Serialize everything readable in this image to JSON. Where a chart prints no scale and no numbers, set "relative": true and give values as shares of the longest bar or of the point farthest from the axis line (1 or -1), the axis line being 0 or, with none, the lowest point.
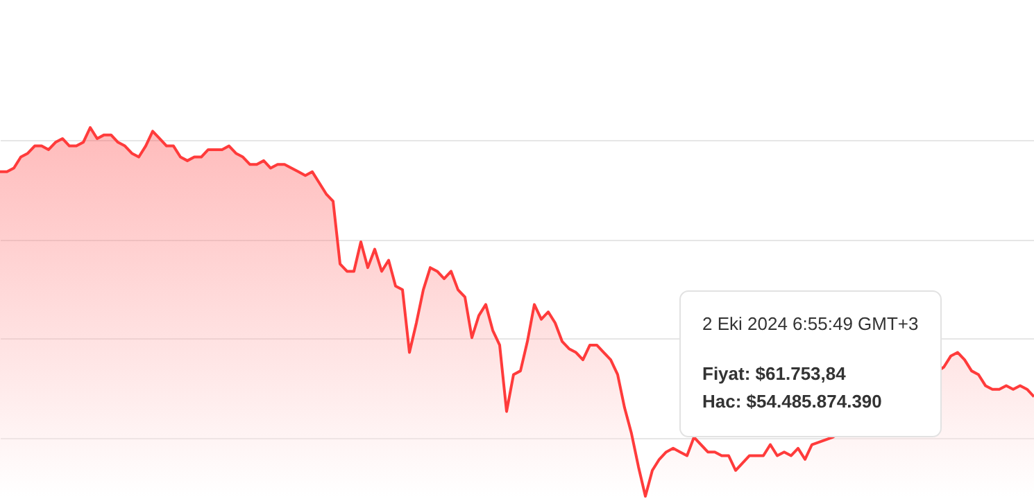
{
  "chart_data": {
    "type": "area",
    "relative": true,
    "grid": "y",
    "tick_labels": false,
    "categories": [
      null,
      null,
      null,
      null,
      null,
      null,
      null,
      null,
      null,
      null,
      null,
      null,
      null,
      null,
      null,
      null,
      null,
      null,
      null,
      null,
      null,
      null,
      null,
      null,
      null,
      null,
      null,
      null,
      null,
      null,
      null,
      null,
      null,
      null,
      null,
      null,
      null,
      null,
      null,
      null,
      null,
      null,
      null,
      null,
      null,
      null,
      null,
      null,
      null,
      null,
      null,
      null,
      null,
      null,
      null,
      null,
      null,
      null,
      null,
      null,
      null,
      null,
      null,
      null,
      null,
      null,
      null,
      null,
      null,
      null,
      null,
      null,
      null,
      null,
      null,
      null,
      null,
      null,
      null,
      null,
      null,
      null,
      null,
      null,
      null,
      null,
      null,
      null,
      null,
      null,
      null,
      null,
      null,
      null,
      null,
      null,
      null,
      null,
      null,
      null,
      null,
      null,
      null,
      null,
      null,
      null,
      null,
      null,
      null,
      null,
      null,
      null,
      null,
      null,
      null,
      null,
      null,
      null,
      null,
      null,
      null,
      null,
      null,
      null,
      null,
      null,
      null,
      null,
      null,
      null,
      null,
      null,
      null,
      null,
      null,
      null,
      null,
      null,
      null,
      null,
      null,
      null,
      null,
      null,
      null,
      null,
      null,
      null,
      null,
      null
    ],
    "series": [
      {
        "color": "#ff3b3b",
        "values": [
          0.88,
          0.88,
          0.89,
          0.92,
          0.93,
          0.95,
          0.95,
          0.94,
          0.96,
          0.97,
          0.95,
          0.95,
          0.96,
          1.0,
          0.97,
          0.98,
          0.98,
          0.96,
          0.95,
          0.93,
          0.92,
          0.95,
          0.99,
          0.97,
          0.95,
          0.95,
          0.92,
          0.91,
          0.92,
          0.92,
          0.94,
          0.94,
          0.94,
          0.95,
          0.93,
          0.92,
          0.9,
          0.9,
          0.91,
          0.89,
          0.9,
          0.9,
          0.89,
          0.88,
          0.87,
          0.88,
          0.85,
          0.82,
          0.8,
          0.63,
          0.61,
          0.61,
          0.69,
          0.62,
          0.67,
          0.61,
          0.64,
          0.57,
          0.56,
          0.39,
          0.47,
          0.56,
          0.62,
          0.61,
          0.59,
          0.61,
          0.56,
          0.54,
          0.43,
          0.49,
          0.52,
          0.45,
          0.41,
          0.23,
          0.33,
          0.34,
          0.42,
          0.52,
          0.48,
          0.5,
          0.47,
          0.42,
          0.4,
          0.39,
          0.37,
          0.41,
          0.41,
          0.39,
          0.37,
          0.33,
          0.24,
          0.17,
          0.08,
          0.0,
          0.07,
          0.1,
          0.12,
          0.13,
          0.12,
          0.11,
          0.16,
          null,
          0.12,
          0.12,
          0.11,
          0.11,
          0.07,
          0.09,
          0.11,
          0.11,
          0.11,
          0.14,
          0.11,
          0.12,
          0.11,
          0.13,
          0.1,
          0.14,
          null,
          null,
          0.16,
          null,
          null,
          null,
          null,
          null,
          null,
          null,
          null,
          null,
          null,
          null,
          null,
          null,
          null,
          null,
          0.35,
          0.38,
          0.39,
          0.37,
          0.34,
          0.33,
          0.3,
          0.29,
          0.29,
          0.3,
          0.29,
          0.3,
          0.29,
          0.27
        ]
      }
    ],
    "annotations": [
      "2 Eki 2024 6:55:49 GMT+3",
      "Fiyat: $61.753,84",
      "Hac: $54.485.874.390"
    ]
  }
}
